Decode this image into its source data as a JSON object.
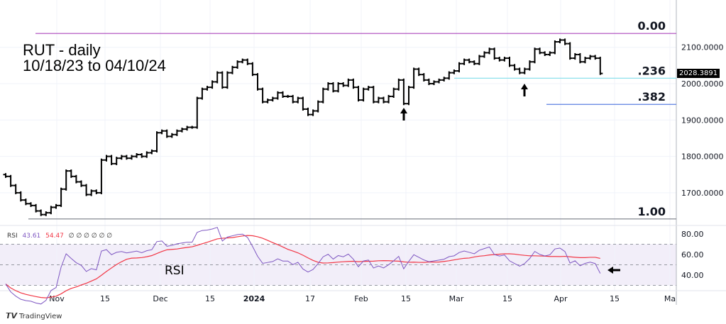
{
  "chart_data": {
    "type": "ohlc",
    "title": "RUT - daily",
    "subtitle": "10/18/23 to 04/10/24",
    "closes": [
      1745,
      1720,
      1700,
      1680,
      1670,
      1665,
      1650,
      1640,
      1645,
      1660,
      1665,
      1710,
      1760,
      1745,
      1730,
      1720,
      1695,
      1705,
      1700,
      1790,
      1800,
      1780,
      1795,
      1800,
      1795,
      1800,
      1805,
      1800,
      1810,
      1815,
      1865,
      1870,
      1855,
      1860,
      1870,
      1875,
      1880,
      1880,
      1960,
      1985,
      1990,
      2005,
      2030,
      1990,
      2030,
      2045,
      2060,
      2065,
      2055,
      2025,
      1985,
      1950,
      1955,
      1960,
      1975,
      1965,
      1965,
      1950,
      1960,
      1930,
      1915,
      1925,
      1950,
      1985,
      2000,
      1980,
      2000,
      1995,
      2010,
      1990,
      1955,
      1985,
      1990,
      1950,
      1960,
      1950,
      1965,
      1985,
      2010,
      1945,
      1990,
      2040,
      2025,
      2010,
      2000,
      2005,
      2010,
      2015,
      2030,
      2035,
      2055,
      2065,
      2060,
      2055,
      2075,
      2085,
      2095,
      2070,
      2065,
      2070,
      2050,
      2040,
      2030,
      2040,
      2060,
      2095,
      2085,
      2080,
      2085,
      2115,
      2120,
      2110,
      2070,
      2080,
      2060,
      2070,
      2075,
      2070,
      2028
    ],
    "x_ticks": [
      "Nov",
      "15",
      "Dec",
      "15",
      "2024",
      "17",
      "Feb",
      "15",
      "Mar",
      "15",
      "Apr",
      "15",
      "Ma"
    ],
    "y_ticks": [
      "2100.0000",
      "2000.0000",
      "1900.0000",
      "1800.0000",
      "1700.0000"
    ],
    "y_tick_values": [
      2100,
      2000,
      1900,
      1800,
      1700
    ],
    "ylim": [
      1620,
      2160
    ],
    "last_price": "2028.3891",
    "fib_levels": [
      {
        "label": "0.00",
        "value": 2138,
        "color": "#ab47bc"
      },
      {
        "label": ".236",
        "value": 2015,
        "color": "#80deea"
      },
      {
        "label": ".382",
        "value": 1943,
        "color": "#5c7fe0"
      },
      {
        "label": "1.00",
        "value": 1628,
        "color": "#787b86"
      }
    ],
    "rsi": {
      "label": "RSI",
      "value": "43.61",
      "ma_value": "54.47",
      "params": "∅ ∅ ∅ ∅ ∅ ∅",
      "y_ticks": [
        "80.00",
        "60.00",
        "40.00"
      ],
      "y_tick_values": [
        80,
        60,
        40
      ],
      "bands": [
        70,
        50,
        30
      ],
      "color": "#7e57c2",
      "ma_color": "#f23645",
      "word": "RSI"
    }
  },
  "branding": "TradingView"
}
